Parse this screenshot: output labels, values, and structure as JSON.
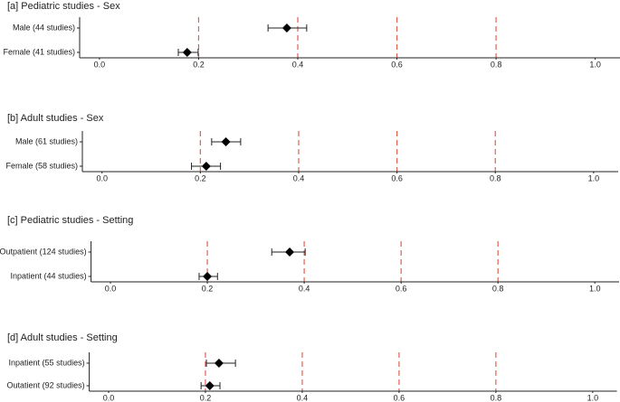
{
  "chart_data": [
    {
      "type": "forest",
      "title": "[a]  Pediatric studies - Sex",
      "categories": [
        "Male (44 studies)",
        "Female (41 studies)"
      ],
      "values": [
        0.378,
        0.177
      ],
      "ci_low": [
        0.34,
        0.159
      ],
      "ci_high": [
        0.418,
        0.199
      ],
      "color": "#000000",
      "ref_lines": [
        0.2,
        0.4,
        0.6,
        0.8
      ],
      "ref_color": "#e06050",
      "xlim": [
        -0.04,
        1.05
      ],
      "xticks": [
        {
          "value": 0,
          "label": "0.0"
        },
        0.2,
        0.4,
        0.6,
        0.8,
        {
          "value": 1,
          "label": "1.0"
        }
      ]
    },
    {
      "type": "forest",
      "title": "[b]  Adult studies - Sex",
      "categories": [
        "Male (61 studies)",
        "Female (58 studies)"
      ],
      "values": [
        0.252,
        0.212
      ],
      "ci_low": [
        0.223,
        0.182
      ],
      "ci_high": [
        0.282,
        0.241
      ],
      "color": "#000000",
      "ref_lines": [
        0.2,
        0.4,
        0.6,
        0.8
      ],
      "ref_color": "#e06050",
      "xlim": [
        -0.04,
        1.05
      ],
      "xticks": [
        {
          "value": 0,
          "label": "0.0"
        },
        0.2,
        0.4,
        0.6,
        0.8,
        {
          "value": 1,
          "label": "1.0"
        }
      ]
    },
    {
      "type": "forest",
      "title": "[c]  Pediatric studies - Setting",
      "categories": [
        "Outpatient (124 studies)",
        "Inpatient (44 studies)"
      ],
      "values": [
        0.37,
        0.2
      ],
      "ci_low": [
        0.333,
        0.183
      ],
      "ci_high": [
        0.402,
        0.221
      ],
      "color": "#000000",
      "ref_lines": [
        0.2,
        0.4,
        0.6,
        0.8
      ],
      "ref_color": "#e06050",
      "xlim": [
        -0.04,
        1.05
      ],
      "xticks": [
        {
          "value": 0,
          "label": "0.0"
        },
        0.2,
        0.4,
        0.6,
        0.8,
        {
          "value": 1,
          "label": "1.0"
        }
      ]
    },
    {
      "type": "forest",
      "title": "[d]  Adult studies - Setting",
      "categories": [
        "Inpatient (55 studies)",
        "Outatient (92 studies)"
      ],
      "values": [
        0.228,
        0.209
      ],
      "ci_low": [
        0.202,
        0.191
      ],
      "ci_high": [
        0.262,
        0.23
      ],
      "color": "#000000",
      "ref_lines": [
        0.2,
        0.4,
        0.6,
        0.8
      ],
      "ref_color": "#e06050",
      "xlim": [
        -0.04,
        1.05
      ],
      "xticks": [
        {
          "value": 0,
          "label": "0.0"
        },
        0.2,
        0.4,
        0.6,
        0.8,
        {
          "value": 1,
          "label": "1.0"
        }
      ]
    }
  ]
}
